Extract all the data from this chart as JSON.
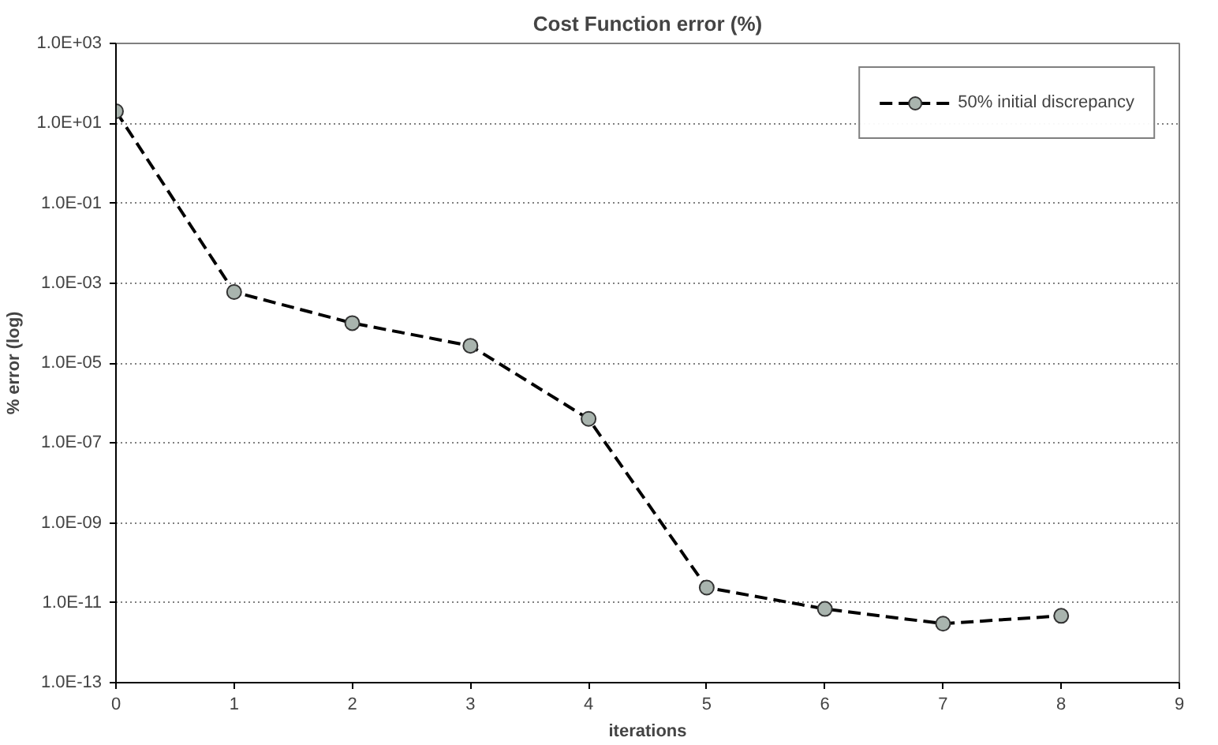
{
  "chart_data": {
    "type": "line",
    "title": "Cost Function error (%)",
    "xlabel": "iterations",
    "ylabel": "% error (log)",
    "x": [
      0,
      1,
      2,
      3,
      4,
      5,
      6,
      7,
      8
    ],
    "series": [
      {
        "name": "50% initial discrepancy",
        "color": "#000000",
        "values": [
          20,
          0.0006,
          0.0001,
          2.7e-05,
          4e-07,
          2.4e-11,
          7e-12,
          3e-12,
          4.7e-12
        ]
      }
    ],
    "log": "y",
    "marker": "circle",
    "line_style": "dashed",
    "grid": "y",
    "legend": "top right",
    "xlim": [
      0,
      9
    ],
    "xticks": [
      0,
      1,
      2,
      3,
      4,
      5,
      6,
      7,
      8,
      9
    ],
    "ylim": [
      1e-13,
      1000
    ],
    "yticks": [
      {
        "value": 1e-13,
        "label": "1.0E-13"
      },
      {
        "value": 1e-11,
        "label": "1.0E-11"
      },
      {
        "value": 1e-09,
        "label": "1.0E-09"
      },
      {
        "value": 1e-07,
        "label": "1.0E-07"
      },
      {
        "value": 1e-05,
        "label": "1.0E-05"
      },
      {
        "value": 0.001,
        "label": "1.0E-03"
      },
      {
        "value": 0.1,
        "label": "1.0E-01"
      },
      {
        "value": 10,
        "label": "1.0E+01"
      },
      {
        "value": 1000,
        "label": "1.0E+03"
      }
    ]
  }
}
